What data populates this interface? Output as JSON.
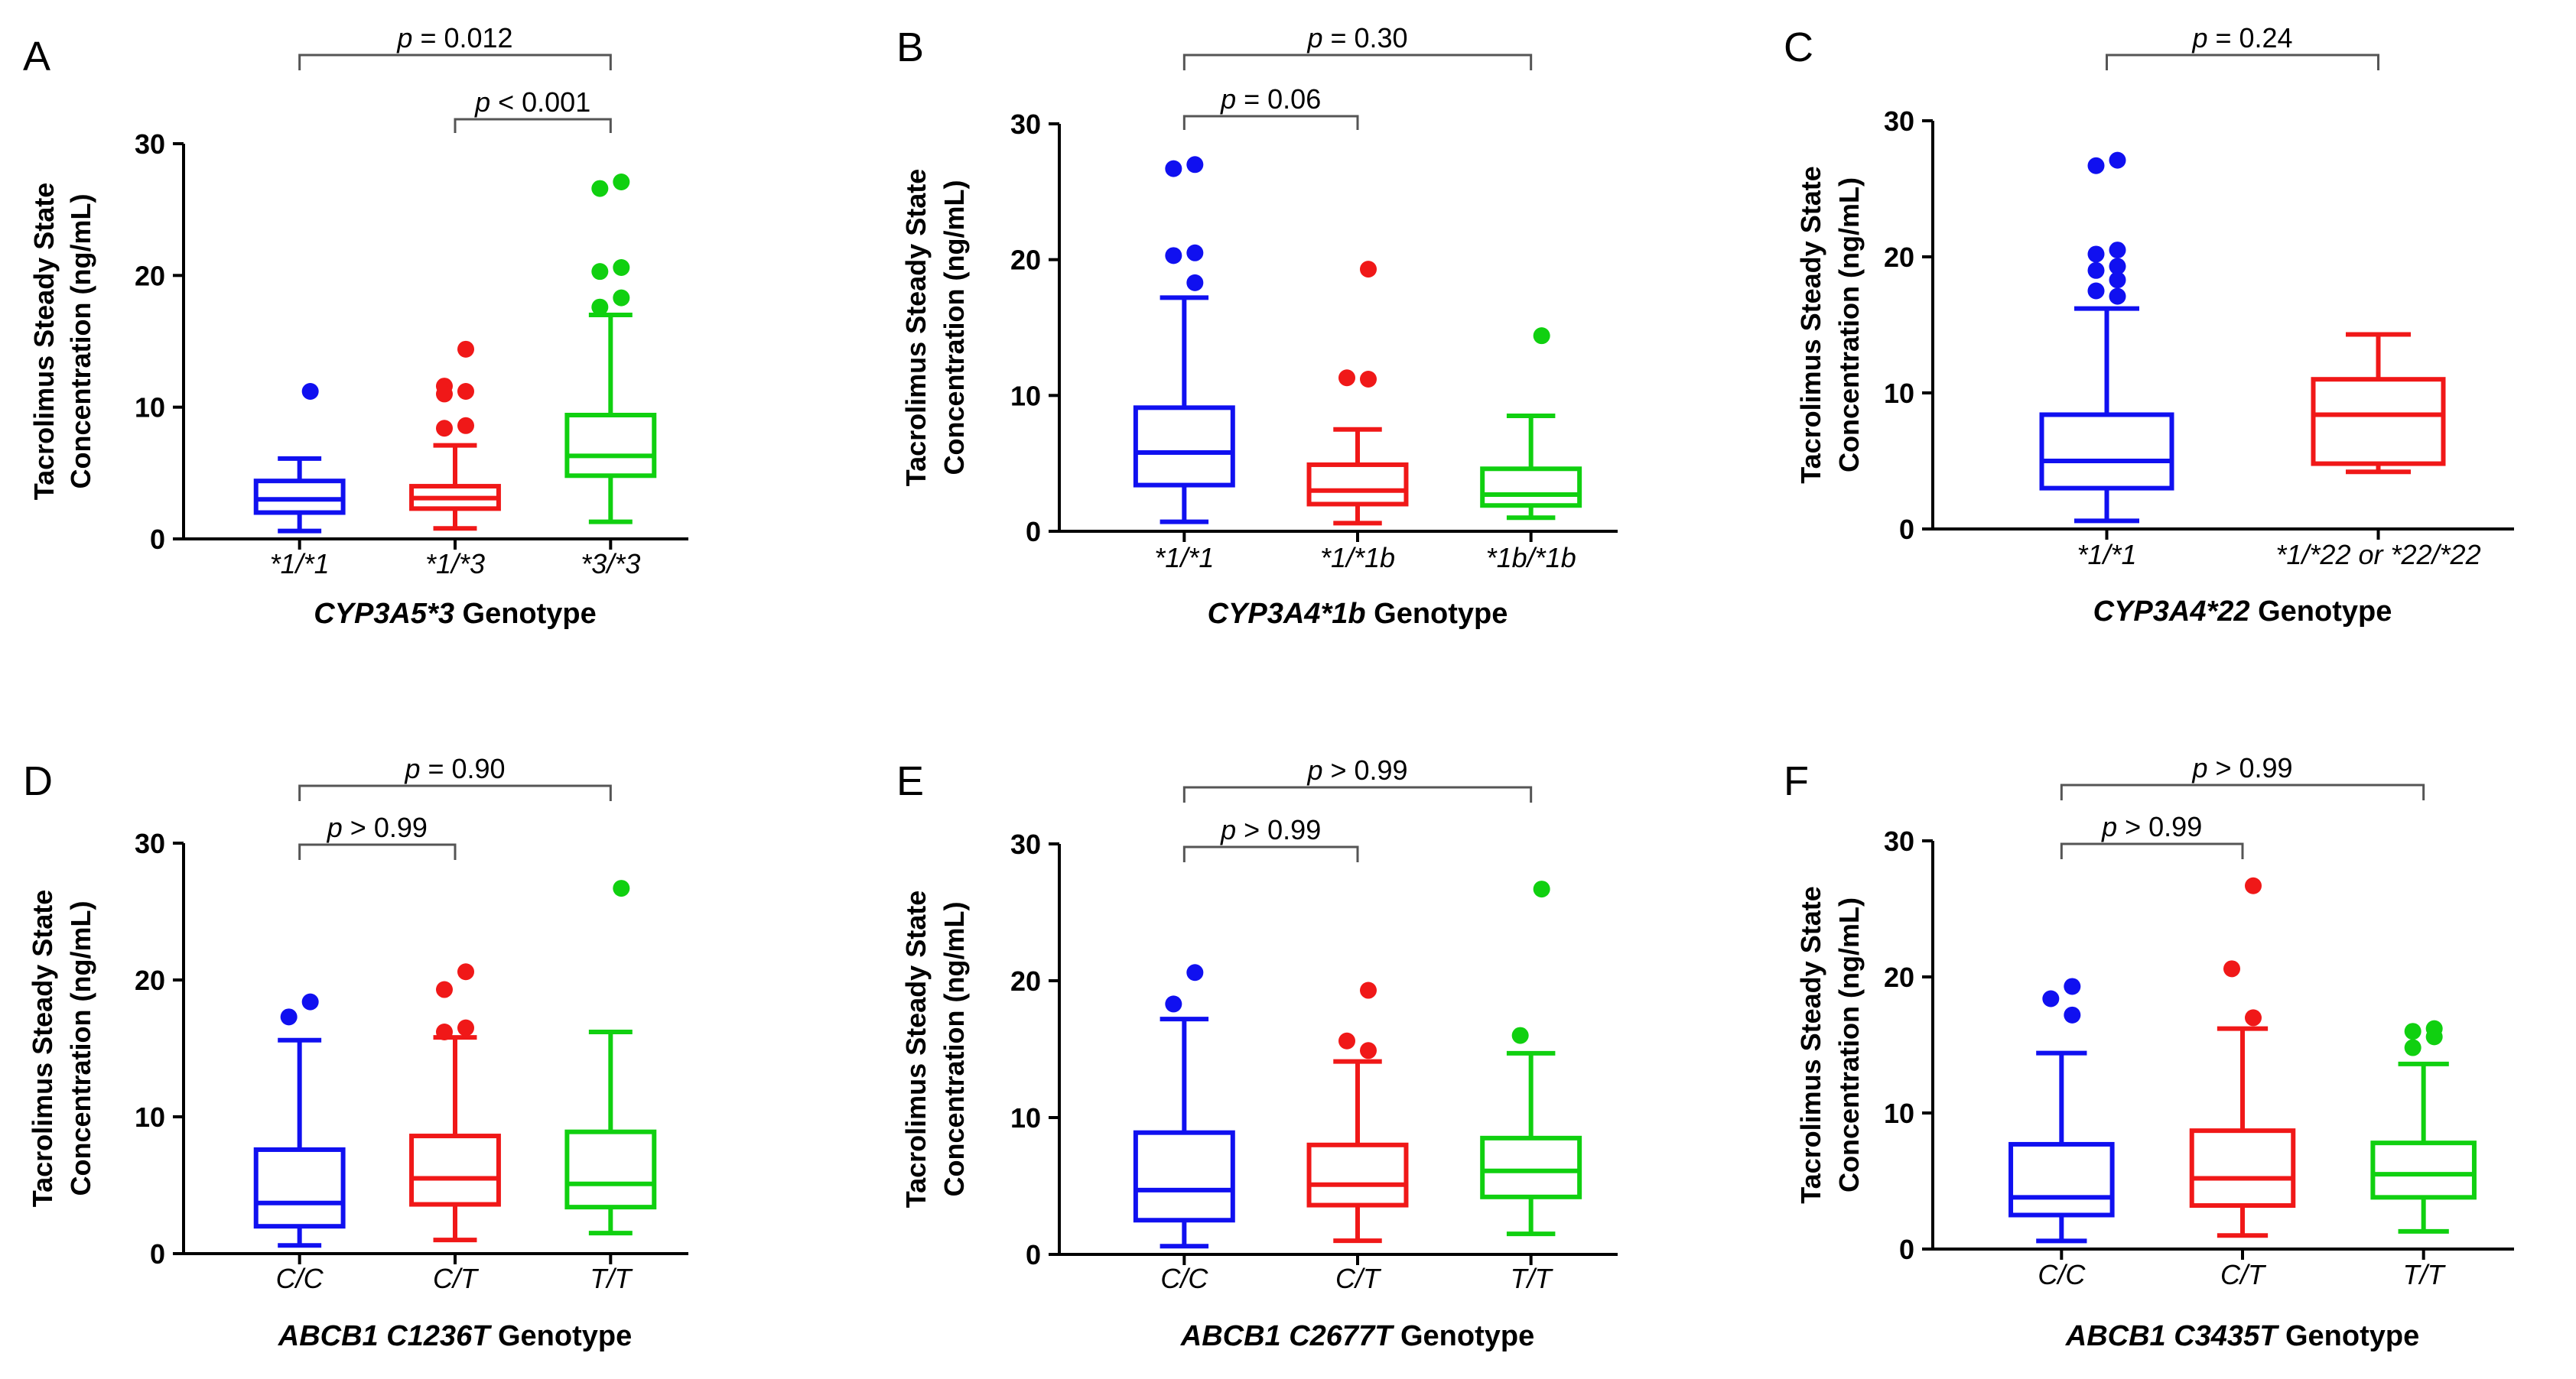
{
  "colors": {
    "blue": "#1010f0",
    "red": "#f01818",
    "green": "#10d010",
    "bracket": "#555555",
    "axis": "#000000"
  },
  "chart_data": [
    {
      "panel": "A",
      "type": "box",
      "ylabel": [
        "Tacrolimus Steady State",
        "Concentration (ng/mL)"
      ],
      "xlabel": {
        "italic": "CYP3A5*3",
        "normal": " Genotype"
      },
      "ylim": [
        0,
        30
      ],
      "yticks": [
        0,
        10,
        20,
        30
      ],
      "categories": [
        "*1/*1",
        "*1/*3",
        "*3/*3"
      ],
      "series": [
        {
          "color": "blue",
          "whisker_low": 0.6,
          "q1": 2.0,
          "median": 3.0,
          "q3": 4.4,
          "whisker_high": 6.1,
          "outliers": [
            11.2
          ]
        },
        {
          "color": "red",
          "whisker_low": 0.8,
          "q1": 2.3,
          "median": 3.1,
          "q3": 4.0,
          "whisker_high": 7.1,
          "outliers": [
            14.4,
            11.6,
            11.2,
            11.0,
            8.6,
            8.4
          ]
        },
        {
          "color": "green",
          "whisker_low": 1.3,
          "q1": 4.8,
          "median": 6.3,
          "q3": 9.4,
          "whisker_high": 17.0,
          "outliers": [
            27.1,
            26.6,
            20.6,
            20.3,
            18.3,
            17.6
          ]
        }
      ],
      "comparisons": [
        {
          "from": 0,
          "to": 2,
          "label": "p = 0.012"
        },
        {
          "from": 1,
          "to": 2,
          "label": "p < 0.001"
        }
      ]
    },
    {
      "panel": "B",
      "type": "box",
      "ylabel": [
        "Tacrolimus Steady State",
        "Concentration (ng/mL)"
      ],
      "xlabel": {
        "italic": "CYP3A4*1b",
        "normal": " Genotype"
      },
      "ylim": [
        0,
        30
      ],
      "yticks": [
        0,
        10,
        20,
        30
      ],
      "categories": [
        "*1/*1",
        "*1/*1b",
        "*1b/*1b"
      ],
      "series": [
        {
          "color": "blue",
          "whisker_low": 0.7,
          "q1": 3.4,
          "median": 5.8,
          "q3": 9.1,
          "whisker_high": 17.2,
          "outliers": [
            27.0,
            26.7,
            20.5,
            20.3,
            18.3
          ]
        },
        {
          "color": "red",
          "whisker_low": 0.6,
          "q1": 2.0,
          "median": 3.0,
          "q3": 4.9,
          "whisker_high": 7.5,
          "outliers": [
            19.3,
            11.3,
            11.2
          ]
        },
        {
          "color": "green",
          "whisker_low": 1.0,
          "q1": 1.9,
          "median": 2.7,
          "q3": 4.6,
          "whisker_high": 8.5,
          "outliers": [
            14.4
          ]
        }
      ],
      "comparisons": [
        {
          "from": 0,
          "to": 2,
          "label": "p = 0.30"
        },
        {
          "from": 0,
          "to": 1,
          "label": "p = 0.06"
        }
      ]
    },
    {
      "panel": "C",
      "type": "box",
      "ylabel": [
        "Tacrolimus Steady State",
        "Concentration (ng/mL)"
      ],
      "xlabel": {
        "italic": "CYP3A4*22",
        "normal": " Genotype"
      },
      "ylim": [
        0,
        30
      ],
      "yticks": [
        0,
        10,
        20,
        30
      ],
      "categories": [
        "*1/*1",
        "*1/*22 or *22/*22"
      ],
      "series": [
        {
          "color": "blue",
          "whisker_low": 0.6,
          "q1": 3.0,
          "median": 5.0,
          "q3": 8.4,
          "whisker_high": 16.2,
          "outliers": [
            27.1,
            26.7,
            20.5,
            20.2,
            19.3,
            19.0,
            18.3,
            17.5,
            17.1
          ]
        },
        {
          "color": "red",
          "whisker_low": 4.2,
          "q1": 4.8,
          "median": 8.4,
          "q3": 11.0,
          "whisker_high": 14.3,
          "outliers": []
        }
      ],
      "comparisons": [
        {
          "from": 0,
          "to": 1,
          "label": "p = 0.24"
        }
      ]
    },
    {
      "panel": "D",
      "type": "box",
      "ylabel": [
        "Tacrolimus Steady State",
        "Concentration (ng/mL)"
      ],
      "xlabel": {
        "italic": "ABCB1 C1236T",
        "normal": " Genotype"
      },
      "ylim": [
        0,
        30
      ],
      "yticks": [
        0,
        10,
        20,
        30
      ],
      "categories": [
        "C/C",
        "C/T",
        "T/T"
      ],
      "series": [
        {
          "color": "blue",
          "whisker_low": 0.6,
          "q1": 2.0,
          "median": 3.7,
          "q3": 7.6,
          "whisker_high": 15.6,
          "outliers": [
            18.4,
            17.3
          ]
        },
        {
          "color": "red",
          "whisker_low": 1.0,
          "q1": 3.6,
          "median": 5.5,
          "q3": 8.6,
          "whisker_high": 15.8,
          "outliers": [
            20.6,
            19.3,
            16.5,
            16.2
          ]
        },
        {
          "color": "green",
          "whisker_low": 1.5,
          "q1": 3.4,
          "median": 5.1,
          "q3": 8.9,
          "whisker_high": 16.2,
          "outliers": [
            26.7
          ]
        }
      ],
      "comparisons": [
        {
          "from": 0,
          "to": 2,
          "label": "p = 0.90"
        },
        {
          "from": 0,
          "to": 1,
          "label": "p > 0.99"
        }
      ]
    },
    {
      "panel": "E",
      "type": "box",
      "ylabel": [
        "Tacrolimus Steady State",
        "Concentration (ng/mL)"
      ],
      "xlabel": {
        "italic": "ABCB1 C2677T",
        "normal": " Genotype"
      },
      "ylim": [
        0,
        30
      ],
      "yticks": [
        0,
        10,
        20,
        30
      ],
      "categories": [
        "C/C",
        "C/T",
        "T/T"
      ],
      "series": [
        {
          "color": "blue",
          "whisker_low": 0.6,
          "q1": 2.5,
          "median": 4.7,
          "q3": 8.9,
          "whisker_high": 17.2,
          "outliers": [
            20.6,
            18.3
          ]
        },
        {
          "color": "red",
          "whisker_low": 1.0,
          "q1": 3.6,
          "median": 5.1,
          "q3": 8.0,
          "whisker_high": 14.1,
          "outliers": [
            19.3,
            15.6,
            14.9
          ]
        },
        {
          "color": "green",
          "whisker_low": 1.5,
          "q1": 4.2,
          "median": 6.1,
          "q3": 8.5,
          "whisker_high": 14.7,
          "outliers": [
            26.7,
            16.0
          ]
        }
      ],
      "comparisons": [
        {
          "from": 0,
          "to": 2,
          "label": "p > 0.99"
        },
        {
          "from": 0,
          "to": 1,
          "label": "p > 0.99"
        }
      ]
    },
    {
      "panel": "F",
      "type": "box",
      "ylabel": [
        "Tacrolimus Steady State",
        "Concentration (ng/mL)"
      ],
      "xlabel": {
        "italic": "ABCB1 C3435T",
        "normal": " Genotype"
      },
      "ylim": [
        0,
        30
      ],
      "yticks": [
        0,
        10,
        20,
        30
      ],
      "categories": [
        "C/C",
        "C/T",
        "T/T"
      ],
      "series": [
        {
          "color": "blue",
          "whisker_low": 0.6,
          "q1": 2.5,
          "median": 3.8,
          "q3": 7.7,
          "whisker_high": 14.4,
          "outliers": [
            19.3,
            18.4,
            17.2
          ]
        },
        {
          "color": "red",
          "whisker_low": 1.0,
          "q1": 3.2,
          "median": 5.2,
          "q3": 8.7,
          "whisker_high": 16.2,
          "outliers": [
            26.7,
            20.6,
            17.0
          ]
        },
        {
          "color": "green",
          "whisker_low": 1.3,
          "q1": 3.8,
          "median": 5.5,
          "q3": 7.8,
          "whisker_high": 13.6,
          "outliers": [
            16.2,
            16.0,
            15.6,
            14.8
          ]
        }
      ],
      "comparisons": [
        {
          "from": 0,
          "to": 2,
          "label": "p > 0.99"
        },
        {
          "from": 0,
          "to": 1,
          "label": "p > 0.99"
        }
      ]
    }
  ]
}
